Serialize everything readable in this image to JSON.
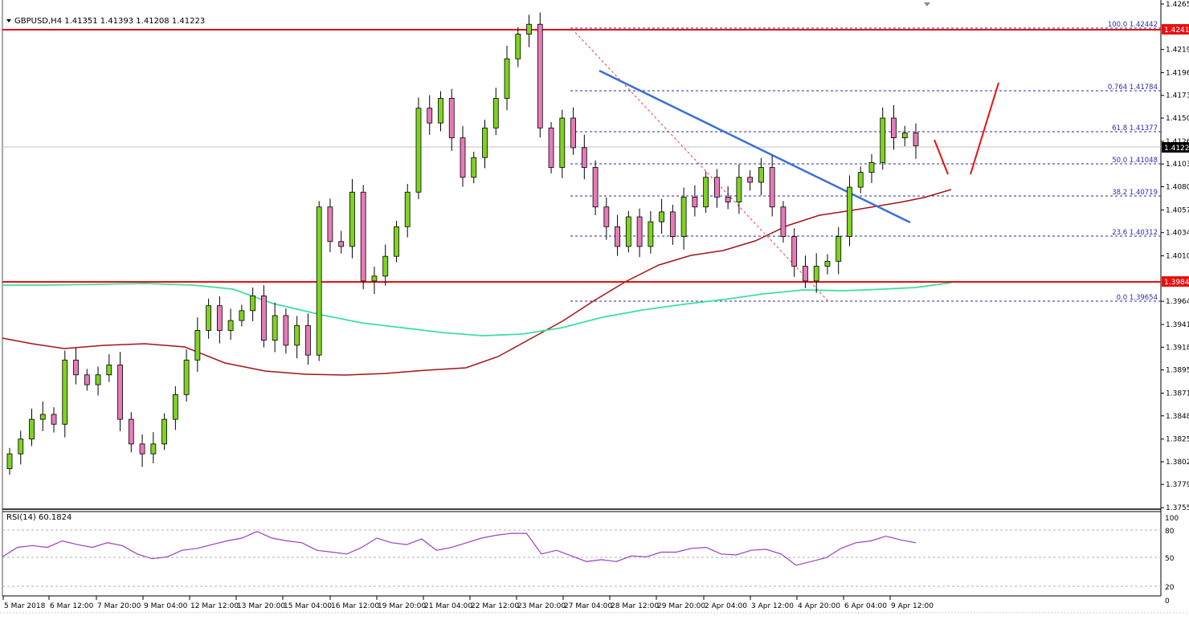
{
  "header": {
    "symbol": "GBPUSD,H4",
    "ohlc": "1.41351 1.41393 1.41208 1.41223",
    "title": "GBPUSD,H4  1.41351 1.41393 1.41208 1.41223"
  },
  "rsi_panel": {
    "label": "RSI(14) 60.1824",
    "levels": [
      "100",
      "80",
      "50",
      "20",
      "0"
    ]
  },
  "price_axis": {
    "ticks": [
      "1.42655",
      "1.42195",
      "1.41960",
      "1.41730",
      "1.41500",
      "1.41265",
      "1.41035",
      "1.40805",
      "1.40570",
      "1.40340",
      "1.40105",
      "1.39645",
      "1.39410",
      "1.39180",
      "1.38950",
      "1.38715",
      "1.38485",
      "1.38250",
      "1.38020",
      "1.37790",
      "1.37555"
    ],
    "tags": [
      {
        "value": "1.42413",
        "color": "#e81010"
      },
      {
        "value": "1.41223",
        "color": "#000000"
      },
      {
        "value": "1.39848",
        "color": "#e81010"
      }
    ]
  },
  "time_axis": {
    "labels": [
      "5 Mar 2018",
      "6 Mar 12:00",
      "7 Mar 20:00",
      "9 Mar 04:00",
      "12 Mar 12:00",
      "13 Mar 20:00",
      "15 Mar 04:00",
      "16 Mar 12:00",
      "19 Mar 20:00",
      "21 Mar 04:00",
      "22 Mar 12:00",
      "23 Mar 20:00",
      "27 Mar 04:00",
      "28 Mar 12:00",
      "29 Mar 20:00",
      "2 Apr 04:00",
      "3 Apr 12:00",
      "4 Apr 20:00",
      "6 Apr 04:00",
      "9 Apr 12:00"
    ]
  },
  "fibonacci": [
    {
      "label": "100.0 1.42442"
    },
    {
      "label": "0.764 1.41784"
    },
    {
      "label": "61.8 1.41377"
    },
    {
      "label": "50.0 1.41048"
    },
    {
      "label": "38.2 1.40719"
    },
    {
      "label": "23.6 1.40312"
    },
    {
      "label": "0.0 1.39654"
    }
  ],
  "colors": {
    "bull": "#7ed321",
    "bear": "#e87ab8",
    "resistance": "#e81010",
    "trendline": "#3a6fd8",
    "ma_fast": "#a31515",
    "ma_slow": "#3de0a0",
    "rsi": "#9b3fc4",
    "fib": "#2a2aa8"
  },
  "chart_data": {
    "type": "candlestick",
    "title": "GBPUSD,H4  1.41351 1.41393 1.41208 1.41223",
    "xlabel": "",
    "ylabel": "",
    "ylim": [
      1.37555,
      1.42655
    ],
    "grid": false,
    "x_ticks": [
      "5 Mar 2018",
      "6 Mar 12:00",
      "7 Mar 20:00",
      "9 Mar 04:00",
      "12 Mar 12:00",
      "13 Mar 20:00",
      "15 Mar 04:00",
      "16 Mar 12:00",
      "19 Mar 20:00",
      "21 Mar 04:00",
      "22 Mar 12:00",
      "23 Mar 20:00",
      "27 Mar 04:00",
      "28 Mar 12:00",
      "29 Mar 20:00",
      "2 Apr 04:00",
      "3 Apr 12:00",
      "4 Apr 20:00",
      "6 Apr 04:00",
      "9 Apr 12:00"
    ],
    "horizontal_lines": [
      {
        "name": "resistance",
        "value": 1.42413
      },
      {
        "name": "support",
        "value": 1.39848
      }
    ],
    "fib_levels": [
      {
        "ratio": "100.0",
        "value": 1.42442
      },
      {
        "ratio": "76.4",
        "value": 1.41784
      },
      {
        "ratio": "61.8",
        "value": 1.41377
      },
      {
        "ratio": "50.0",
        "value": 1.41048
      },
      {
        "ratio": "38.2",
        "value": 1.40719
      },
      {
        "ratio": "23.6",
        "value": 1.40312
      },
      {
        "ratio": "0.0",
        "value": 1.39654
      }
    ],
    "last_close": 1.41223,
    "series": [
      {
        "name": "GBPUSD H4 close (approx)",
        "values": [
          1.381,
          1.3825,
          1.3845,
          1.385,
          1.384,
          1.3905,
          1.389,
          1.388,
          1.389,
          1.39,
          1.3845,
          1.382,
          1.381,
          1.382,
          1.3845,
          1.387,
          1.3905,
          1.3935,
          1.396,
          1.3935,
          1.3945,
          1.3955,
          1.397,
          1.3925,
          1.395,
          1.392,
          1.394,
          1.391,
          1.406,
          1.4025,
          1.402,
          1.4075,
          1.3985,
          1.399,
          1.401,
          1.404,
          1.4075,
          1.416,
          1.4145,
          1.417,
          1.413,
          1.409,
          1.411,
          1.414,
          1.417,
          1.421,
          1.4235,
          1.4245,
          1.414,
          1.41,
          1.415,
          1.412,
          1.41,
          1.406,
          1.404,
          1.402,
          1.405,
          1.402,
          1.4045,
          1.4055,
          1.403,
          1.407,
          1.406,
          1.409,
          1.407,
          1.4065,
          1.409,
          1.4085,
          1.41,
          1.406,
          1.403,
          1.4,
          1.3985,
          1.4,
          1.4005,
          1.403,
          1.408,
          1.4095,
          1.4105,
          1.415,
          1.413,
          1.4135,
          1.4122
        ]
      },
      {
        "name": "MA fast (dark red)",
        "values": [
          1.3925,
          1.3915,
          1.392,
          1.3905,
          1.389,
          1.3888,
          1.389,
          1.3895,
          1.393,
          1.398,
          1.401,
          1.4025,
          1.404,
          1.4055,
          1.407,
          1.4082
        ]
      },
      {
        "name": "MA slow (green)",
        "values": [
          1.398,
          1.3982,
          1.3978,
          1.3955,
          1.3935,
          1.393,
          1.3945,
          1.3962,
          1.3968,
          1.397,
          1.3975,
          1.3985
        ]
      }
    ],
    "rsi": {
      "name": "RSI(14)",
      "last": 60.1824,
      "levels": [
        80,
        50,
        20
      ],
      "values": [
        45,
        55,
        57,
        55,
        62,
        58,
        55,
        60,
        57,
        48,
        43,
        45,
        52,
        54,
        58,
        62,
        65,
        72,
        65,
        62,
        60,
        52,
        50,
        48,
        55,
        65,
        60,
        58,
        64,
        52,
        55,
        60,
        65,
        68,
        70,
        70,
        48,
        52,
        46,
        40,
        42,
        40,
        46,
        45,
        50,
        50,
        54,
        55,
        48,
        47,
        52,
        53,
        48,
        36,
        40,
        44,
        54,
        60,
        62,
        67,
        63,
        60
      ]
    }
  }
}
